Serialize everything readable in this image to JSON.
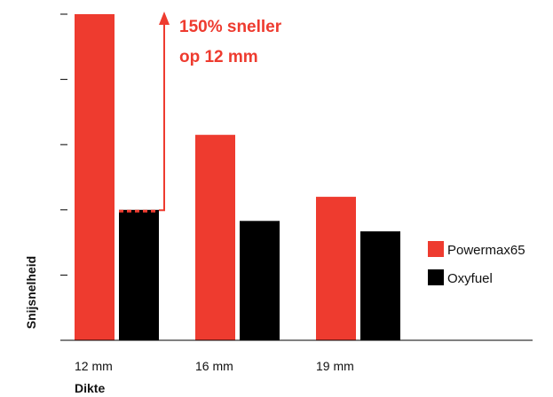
{
  "chart_data": {
    "type": "bar",
    "categories": [
      "12 mm",
      "16 mm",
      "19 mm"
    ],
    "series": [
      {
        "name": "Powermax65",
        "values": [
          5,
          3.15,
          2.2
        ],
        "color": "#EE3B2F"
      },
      {
        "name": "Oxyfuel",
        "values": [
          2,
          1.83,
          1.67
        ],
        "color": "#000000"
      }
    ],
    "xlabel": "Dikte",
    "ylabel": "Snijsnelheid",
    "ylim": [
      0,
      5
    ],
    "yticks": [
      1,
      2,
      3,
      4,
      5
    ],
    "y_tick_labels_shown": false,
    "grid": false,
    "legend_position": "right",
    "annotation": {
      "line1": "150% sneller",
      "line2": "op 12 mm",
      "color": "#EE3B2F",
      "category": "12 mm"
    }
  }
}
